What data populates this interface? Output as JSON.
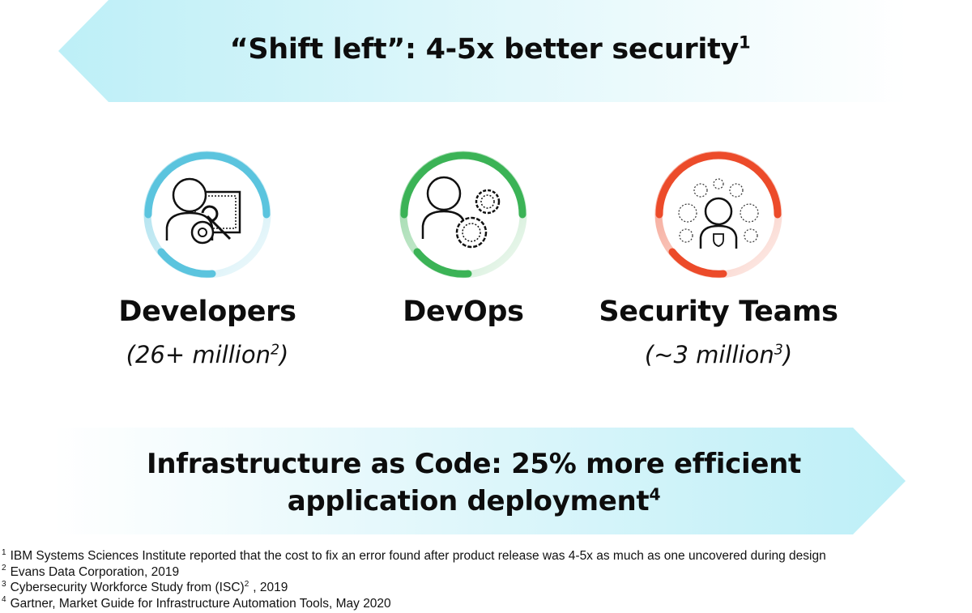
{
  "top_banner": {
    "title": "“Shift left”: 4-5x better security",
    "footnote_ref": "1",
    "color": "#c6f2f8"
  },
  "personas": [
    {
      "label": "Developers",
      "count": "(26+ million",
      "count_ref": "2",
      "count_close": ")",
      "icon": "developer-wrench-icon",
      "color": "#5bc4de"
    },
    {
      "label": "DevOps",
      "count": "",
      "count_ref": "",
      "count_close": "",
      "icon": "devops-gears-icon",
      "color": "#3bb356"
    },
    {
      "label": "Security Teams",
      "count": "(~3 million",
      "count_ref": "3",
      "count_close": ")",
      "icon": "security-shield-icon",
      "color": "#ec4b2a"
    }
  ],
  "bottom_banner": {
    "line1": "Infrastructure as Code: 25% more efficient",
    "line2": "application deployment",
    "footnote_ref": "4",
    "color": "#c6f2f8"
  },
  "footnotes": [
    {
      "num": "1",
      "pre": "IBM Systems Sciences Institute reported that the cost to fix an error found after product release was 4-5x as much as one uncovered during design",
      "sup": "",
      "post": ""
    },
    {
      "num": "2",
      "pre": "Evans Data Corporation, 2019",
      "sup": "",
      "post": ""
    },
    {
      "num": "3",
      "pre": "Cybersecurity Workforce Study from (ISC)",
      "sup": "2",
      "post": ", 2019"
    },
    {
      "num": "4",
      "pre": "Gartner, Market Guide for Infrastructure Automation Tools, May 2020",
      "sup": "",
      "post": ""
    }
  ]
}
